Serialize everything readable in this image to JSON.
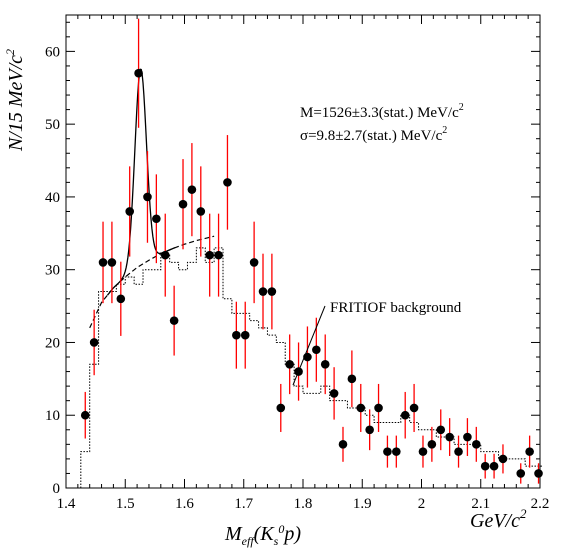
{
  "chart_data": {
    "type": "scatter",
    "xlim": [
      1.4,
      2.2
    ],
    "ylim": [
      0,
      65
    ],
    "x_ticks": [
      1.4,
      1.5,
      1.6,
      1.7,
      1.8,
      1.9,
      2.0,
      2.1,
      2.2
    ],
    "y_ticks": [
      0,
      10,
      20,
      30,
      40,
      50,
      60
    ],
    "x_tick_labels": [
      "1.4",
      "1.5",
      "1.6",
      "1.7",
      "1.8",
      "1.9",
      "2",
      "2.1",
      "2.2"
    ],
    "y_tick_labels": [
      "0",
      "10",
      "20",
      "30",
      "40",
      "50",
      "60"
    ],
    "xlabel_main": "M",
    "xlabel_sub": "eff",
    "xlabel_paren_open": "(K",
    "xlabel_sub2": "s",
    "xlabel_sup2": "0",
    "xlabel_tail": "p)",
    "xunit": "GeV/c",
    "xunit_sup": "2",
    "ylabel": "N/15 MeV/c",
    "ylabel_sup": "2",
    "annotation_line1": "M=1526±3.3(stat.) MeV/c",
    "annotation_line1_sup": "2",
    "annotation_line2": "σ=9.8±2.7(stat.) MeV/c",
    "annotation_line2_sup": "2",
    "background_label": "FRITIOF background",
    "grid": false,
    "data_points": {
      "x": [
        1.4325,
        1.4475,
        1.4625,
        1.4775,
        1.4925,
        1.5075,
        1.5225,
        1.5375,
        1.5525,
        1.5675,
        1.5825,
        1.5975,
        1.6125,
        1.6275,
        1.6425,
        1.6575,
        1.6725,
        1.6875,
        1.7025,
        1.7175,
        1.7325,
        1.7475,
        1.7625,
        1.7775,
        1.7925,
        1.8075,
        1.8225,
        1.8375,
        1.8525,
        1.8675,
        1.8825,
        1.8975,
        1.9125,
        1.9275,
        1.9425,
        1.9575,
        1.9725,
        1.9875,
        2.0025,
        2.0175,
        2.0325,
        2.0475,
        2.0625,
        2.0775,
        2.0925,
        2.1075,
        2.1225,
        2.1375,
        2.1675,
        2.1825,
        2.1975
      ],
      "y": [
        10,
        20,
        31,
        31,
        26,
        38,
        57,
        40,
        37,
        32,
        23,
        39,
        41,
        38,
        32,
        32,
        42,
        21,
        21,
        31,
        27,
        27,
        11,
        17,
        16,
        18,
        19,
        17,
        13,
        6,
        15,
        11,
        8,
        11,
        5,
        5,
        10,
        11,
        5,
        6,
        8,
        7,
        5,
        7,
        6,
        3,
        3,
        4,
        2,
        5,
        2
      ],
      "err": [
        3.2,
        4.5,
        5.6,
        5.6,
        5.1,
        6.2,
        7.5,
        6.3,
        6.1,
        5.7,
        4.8,
        6.2,
        6.4,
        6.2,
        5.7,
        5.7,
        6.5,
        4.6,
        4.6,
        5.6,
        5.2,
        5.2,
        3.3,
        4.1,
        4.0,
        4.2,
        4.4,
        4.1,
        3.6,
        2.4,
        3.9,
        3.3,
        2.8,
        3.3,
        2.2,
        2.2,
        3.2,
        3.3,
        2.2,
        2.4,
        2.8,
        2.6,
        2.2,
        2.6,
        2.4,
        1.7,
        1.7,
        2.0,
        1.4,
        2.2,
        1.4
      ],
      "marker_color": "#000000",
      "error_bar_color": "#ff0000"
    },
    "background_histogram": {
      "edges": [
        1.425,
        1.44,
        1.455,
        1.47,
        1.485,
        1.5,
        1.515,
        1.53,
        1.545,
        1.56,
        1.575,
        1.59,
        1.605,
        1.62,
        1.635,
        1.65,
        1.665,
        1.68,
        1.695,
        1.71,
        1.725,
        1.74,
        1.755,
        1.77,
        1.785,
        1.8,
        1.815,
        1.83,
        1.845,
        1.86,
        1.875,
        1.89,
        1.905,
        1.92,
        1.935,
        1.95,
        1.965,
        1.98,
        1.995,
        2.01,
        2.025,
        2.04,
        2.055,
        2.07,
        2.085,
        2.1,
        2.115,
        2.13,
        2.145,
        2.16,
        2.175,
        2.19,
        2.205
      ],
      "values": [
        5,
        17,
        27,
        27,
        28,
        29,
        28,
        30,
        30,
        32,
        31,
        30,
        31,
        33,
        31,
        33,
        26,
        24,
        24,
        23,
        22,
        21,
        20,
        17,
        14,
        13,
        13,
        14,
        12,
        12,
        11,
        11,
        10,
        9,
        9,
        9,
        10,
        9,
        8,
        8,
        7,
        7,
        6,
        6,
        6,
        5,
        5,
        4,
        4,
        4,
        3,
        3
      ],
      "style": "dotted-step"
    },
    "fit_peak": {
      "mass": 1.526,
      "sigma": 0.0098,
      "amplitude": 27
    },
    "fit_background_curve": {
      "x": [
        1.44,
        1.46,
        1.48,
        1.5,
        1.52,
        1.54,
        1.56,
        1.58,
        1.6,
        1.62,
        1.64,
        1.65
      ],
      "y": [
        22,
        25.5,
        27.5,
        29,
        30.3,
        31.3,
        32.2,
        32.9,
        33.5,
        34,
        34.4,
        34.6
      ]
    }
  }
}
